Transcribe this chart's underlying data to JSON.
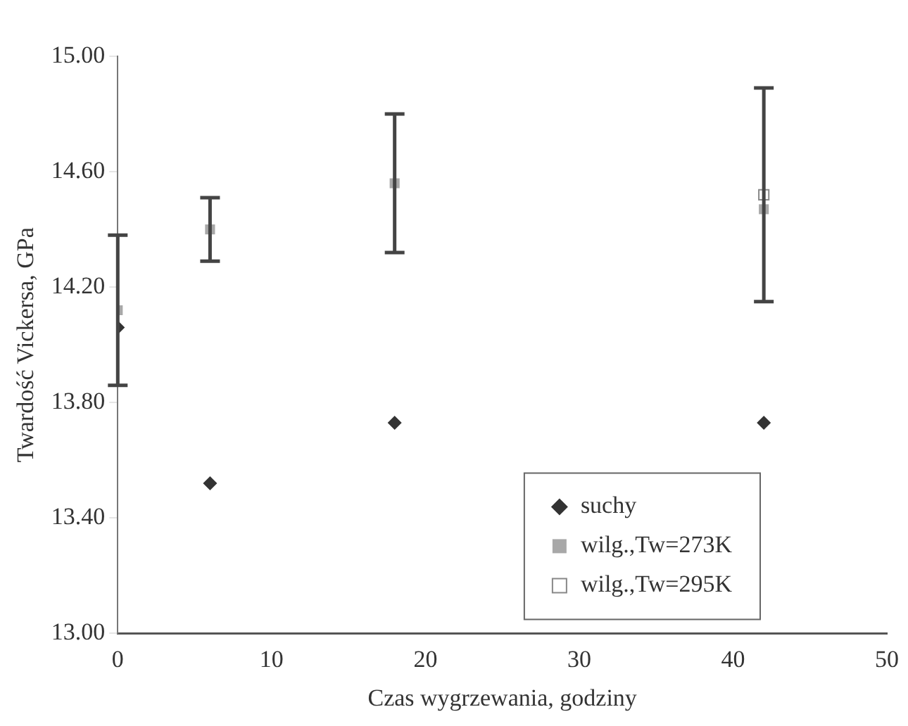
{
  "chart_data": {
    "type": "scatter",
    "xlabel": "Czas wygrzewania, godziny",
    "ylabel": "Twardość Vickersa, GPa",
    "xlim": [
      0,
      50
    ],
    "xticks": [
      0,
      10,
      20,
      30,
      40,
      50
    ],
    "ylim": [
      13,
      15
    ],
    "yticks": [
      {
        "value": 13,
        "label": "13.00"
      },
      {
        "value": 13.4,
        "label": "13.40"
      },
      {
        "value": 13.8,
        "label": "13.80"
      },
      {
        "value": 14.2,
        "label": "14.20"
      },
      {
        "value": 14.6,
        "label": "14.60"
      },
      {
        "value": 15,
        "label": "15.00"
      }
    ],
    "grid": false,
    "legend": "bottom right",
    "series": [
      {
        "name": "suchy",
        "color": "#333333",
        "marker": "diamond",
        "x": [
          0,
          6,
          18,
          42
        ],
        "values": [
          14.06,
          13.52,
          13.73,
          13.73
        ]
      },
      {
        "name": "wilg.,Tw=273K",
        "color": "#a8a8a8",
        "marker": "square",
        "x": [
          0,
          6,
          18,
          42
        ],
        "values": [
          14.12,
          14.4,
          14.56,
          14.47
        ],
        "errors": [
          0.26,
          0.11,
          0.24,
          null
        ]
      },
      {
        "name": "wilg.,Tw=295K",
        "color": "#ffffff",
        "marker": "square",
        "x": [
          42
        ],
        "values": [
          14.52
        ],
        "errors": [
          0.37
        ]
      }
    ]
  }
}
